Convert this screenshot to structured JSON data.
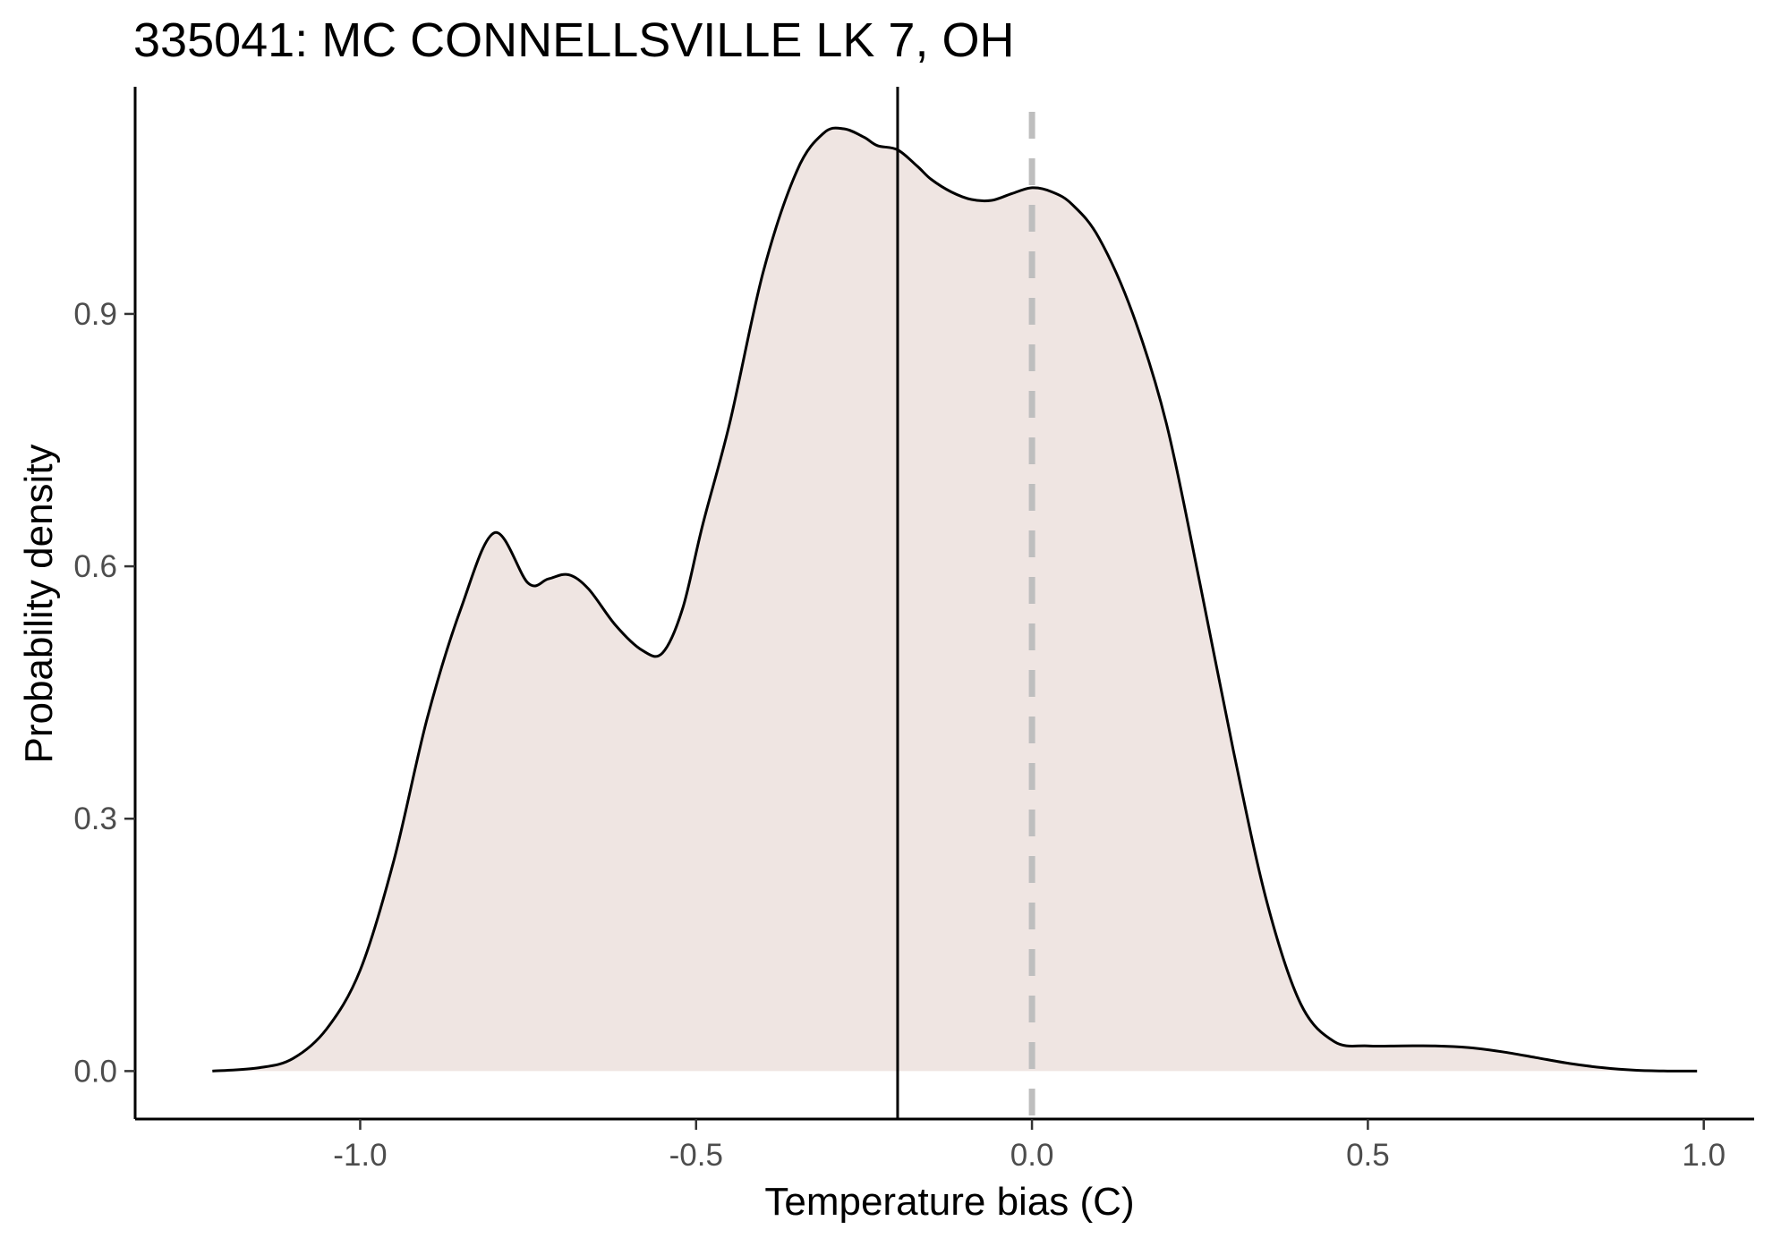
{
  "chart_data": {
    "type": "area",
    "title": "335041: MC CONNELLSVILLE LK 7, OH",
    "xlabel": "Temperature bias (C)",
    "ylabel": "Probability density",
    "xlim": [
      -1.335,
      1.075
    ],
    "ylim": [
      -0.057,
      1.17
    ],
    "x_ticks": [
      -1.0,
      -0.5,
      0.0,
      0.5,
      1.0
    ],
    "x_tick_labels": [
      "-1.0",
      "-0.5",
      "0.0",
      "0.5",
      "1.0"
    ],
    "y_ticks": [
      0.0,
      0.3,
      0.6,
      0.9
    ],
    "y_tick_labels": [
      "0.0",
      "0.3",
      "0.6",
      "0.9"
    ],
    "grid": false,
    "legend": "none",
    "fill_color": "#efe5e2",
    "line_color": "#000000",
    "series": [
      {
        "x": [
          -1.22,
          -1.15,
          -1.1,
          -1.05,
          -1.0,
          -0.95,
          -0.9,
          -0.85,
          -0.8,
          -0.75,
          -0.72,
          -0.69,
          -0.66,
          -0.62,
          -0.58,
          -0.55,
          -0.52,
          -0.49,
          -0.45,
          -0.4,
          -0.35,
          -0.31,
          -0.28,
          -0.25,
          -0.23,
          -0.2,
          -0.17,
          -0.15,
          -0.12,
          -0.09,
          -0.06,
          -0.03,
          0.0,
          0.03,
          0.06,
          0.1,
          0.15,
          0.2,
          0.25,
          0.3,
          0.35,
          0.4,
          0.45,
          0.5,
          0.55,
          0.6,
          0.65,
          0.7,
          0.75,
          0.8,
          0.85,
          0.9,
          0.95,
          0.99
        ],
        "values": [
          0.0,
          0.004,
          0.015,
          0.05,
          0.12,
          0.25,
          0.42,
          0.55,
          0.64,
          0.58,
          0.585,
          0.59,
          0.573,
          0.53,
          0.5,
          0.497,
          0.55,
          0.65,
          0.77,
          0.95,
          1.07,
          1.115,
          1.12,
          1.11,
          1.1,
          1.095,
          1.075,
          1.06,
          1.045,
          1.036,
          1.035,
          1.043,
          1.05,
          1.045,
          1.03,
          0.99,
          0.9,
          0.77,
          0.58,
          0.38,
          0.2,
          0.08,
          0.035,
          0.03,
          0.03,
          0.03,
          0.028,
          0.023,
          0.016,
          0.009,
          0.004,
          0.001,
          0.0,
          0.0
        ]
      }
    ],
    "reference_lines": [
      {
        "axis": "x",
        "value": -0.2,
        "color": "#000000",
        "style": "solid"
      },
      {
        "axis": "x",
        "value": 0.0,
        "color": "#bebebe",
        "style": "dashed"
      }
    ]
  }
}
